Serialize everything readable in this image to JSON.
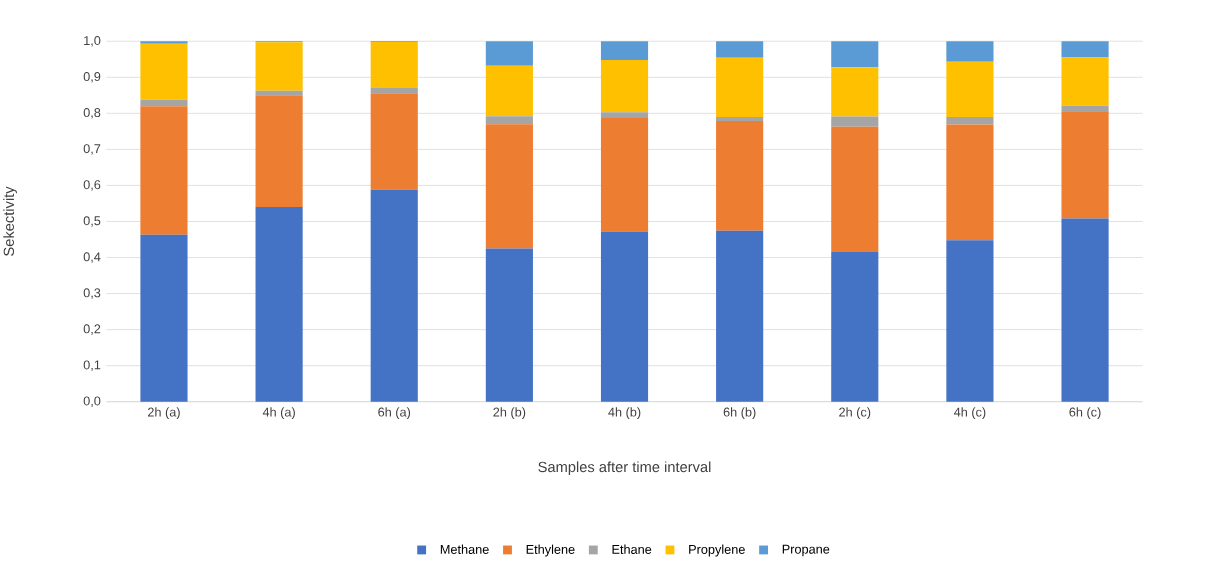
{
  "chart_data": {
    "type": "bar",
    "stacked": true,
    "ylabel": "Sekectivity",
    "xlabel": "Samples after time interval",
    "categories": [
      "2h (a)",
      "4h (a)",
      "6h (a)",
      "2h (b)",
      "4h (b)",
      "6h (b)",
      "2h (c)",
      "4h (c)",
      "6h (c)"
    ],
    "series": [
      {
        "name": "Methane",
        "color": "#4472c4",
        "values": [
          0.463,
          0.54,
          0.588,
          0.425,
          0.472,
          0.474,
          0.415,
          0.448,
          0.508
        ]
      },
      {
        "name": "Ethylene",
        "color": "#ed7d31",
        "values": [
          0.357,
          0.31,
          0.268,
          0.345,
          0.315,
          0.305,
          0.348,
          0.321,
          0.296
        ]
      },
      {
        "name": "Ethane",
        "color": "#a5a5a5",
        "values": [
          0.018,
          0.013,
          0.014,
          0.022,
          0.016,
          0.011,
          0.028,
          0.021,
          0.017
        ]
      },
      {
        "name": "Propylene",
        "color": "#ffc000",
        "values": [
          0.155,
          0.134,
          0.128,
          0.14,
          0.145,
          0.164,
          0.137,
          0.153,
          0.134
        ]
      },
      {
        "name": "Propane",
        "color": "#5b9bd5",
        "values": [
          0.007,
          0.003,
          0.002,
          0.068,
          0.052,
          0.046,
          0.072,
          0.057,
          0.045
        ]
      }
    ],
    "ylim": [
      0,
      1
    ],
    "yticks": [
      {
        "value": 0,
        "label": "0,0"
      },
      {
        "value": 0.1,
        "label": "0,1"
      },
      {
        "value": 0.2,
        "label": "0,2"
      },
      {
        "value": 0.3,
        "label": "0,3"
      },
      {
        "value": 0.4,
        "label": "0,4"
      },
      {
        "value": 0.5,
        "label": "0,5"
      },
      {
        "value": 0.6,
        "label": "0,6"
      },
      {
        "value": 0.7,
        "label": "0,7"
      },
      {
        "value": 0.8,
        "label": "0,8"
      },
      {
        "value": 0.9,
        "label": "0,9"
      },
      {
        "value": 1,
        "label": "1,0"
      }
    ],
    "grid": "y",
    "legend": "bottom"
  }
}
